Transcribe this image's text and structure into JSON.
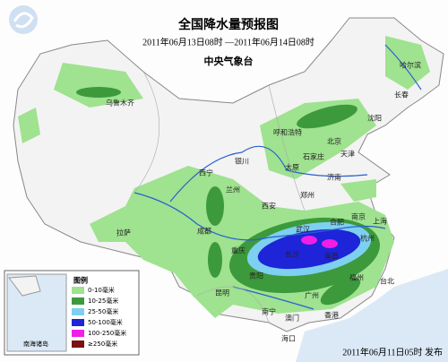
{
  "header": {
    "title": "全国降水量预报图",
    "period": "2011年06月13日08时 —2011年06月14日08时",
    "agency": "中央气象台"
  },
  "cities": [
    "哈尔滨",
    "长春",
    "沈阳",
    "乌鲁木齐",
    "呼和浩特",
    "北京",
    "天津",
    "石家庄",
    "太原",
    "银川",
    "济南",
    "西宁",
    "兰州",
    "郑州",
    "西安",
    "合肥",
    "南京",
    "上海",
    "拉萨",
    "成都",
    "武汉",
    "杭州",
    "重庆",
    "长沙",
    "南昌",
    "贵阳",
    "福州",
    "台北",
    "昆明",
    "广州",
    "南宁",
    "香港",
    "澳门",
    "海口"
  ],
  "legend": {
    "title": "图例",
    "items": [
      {
        "label": "0-10毫米",
        "color": "#9fe28f"
      },
      {
        "label": "10-25毫米",
        "color": "#3c9a3c"
      },
      {
        "label": "25-50毫米",
        "color": "#7ed0f0"
      },
      {
        "label": "50-100毫米",
        "color": "#1e24d8"
      },
      {
        "label": "100-250毫米",
        "color": "#f01ee6"
      },
      {
        "label": "≥250毫米",
        "color": "#7a1010"
      }
    ],
    "inset": "南海诸岛"
  },
  "footer": "2011年06月11日05时 发布"
}
